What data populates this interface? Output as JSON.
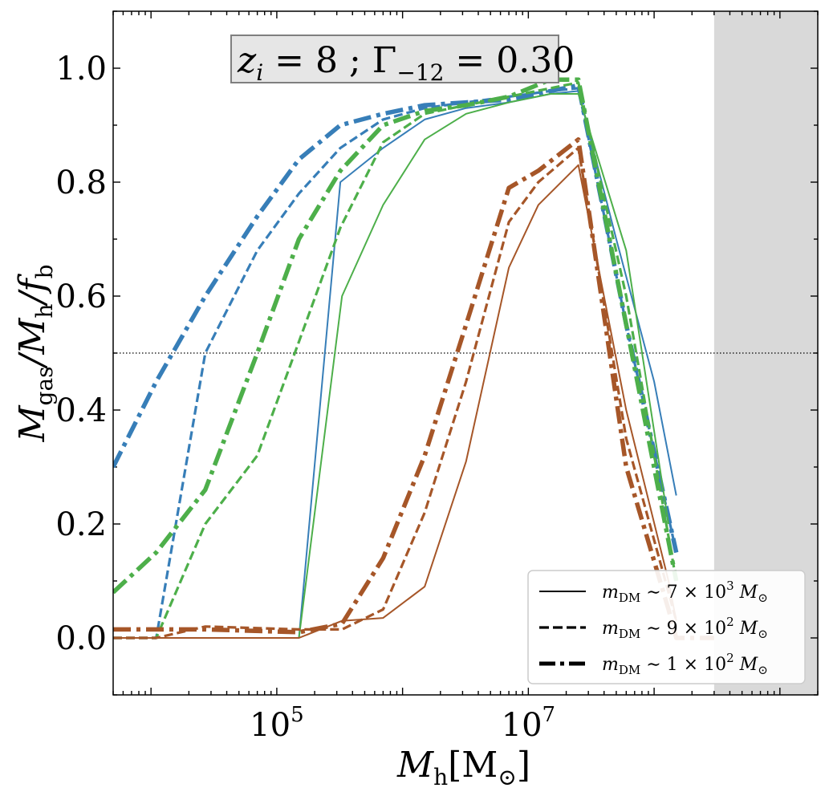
{
  "chart_data": {
    "type": "line",
    "xscale": "log",
    "xlim": [
      5000,
      2000000000
    ],
    "ylim": [
      -0.1,
      1.1
    ],
    "x_tick_labels": [
      {
        "base": "10",
        "exp": "5",
        "value": 100000
      },
      {
        "base": "10",
        "exp": "7",
        "value": 10000000
      }
    ],
    "y_tick_labels": [
      "0.0",
      "0.2",
      "0.4",
      "0.6",
      "0.8",
      "1.0"
    ],
    "y_ticks": [
      0.0,
      0.2,
      0.4,
      0.6,
      0.8,
      1.0
    ],
    "xlabel": {
      "main": "M",
      "sub": "h",
      "unit": "[M",
      "unit_sym": "⊙",
      "unit_close": "]"
    },
    "ylabel": {
      "p1": "M",
      "s1": "gas",
      "p2": "/M",
      "s2": "h",
      "p3": "/f",
      "s3": "b"
    },
    "annotation": {
      "a": "z",
      "a_sub": "i",
      "b": " = 8 ; Γ",
      "b_sub": "−12",
      "c": " = 0.30"
    },
    "hline": {
      "y": 0.5,
      "style": "dotted"
    },
    "shaded_region": {
      "x_from": 300000000,
      "x_to": 2000000000,
      "color": "#d9d9d9"
    },
    "colors": {
      "blue": "#377eb8",
      "green": "#4daf4a",
      "brown": "#a65628"
    },
    "legend": {
      "placement": "lower right",
      "entries": [
        {
          "style": "solid",
          "text_pre": "m",
          "text_sub": "DM",
          "text_mid": " ∼ 7 × 10",
          "text_sup": "3",
          "text_end": " M",
          "text_sym": "⊙"
        },
        {
          "style": "dashed",
          "text_pre": "m",
          "text_sub": "DM",
          "text_mid": " ∼ 9 × 10",
          "text_sup": "2",
          "text_end": " M",
          "text_sym": "⊙"
        },
        {
          "style": "dashdot",
          "text_pre": "m",
          "text_sub": "DM",
          "text_mid": " ∼ 1 × 10",
          "text_sup": "2",
          "text_end": " M",
          "text_sym": "⊙"
        }
      ]
    },
    "series": [
      {
        "color": "blue",
        "style": "solid",
        "x": [
          5000,
          11000,
          150000,
          320000,
          700000,
          1500000,
          3200000,
          7000000,
          15000000,
          25000000,
          50000000,
          100000000,
          150000000
        ],
        "y": [
          0.0,
          0.0,
          0.0,
          0.8,
          0.86,
          0.91,
          0.93,
          0.94,
          0.955,
          0.96,
          0.7,
          0.45,
          0.25
        ]
      },
      {
        "color": "blue",
        "style": "dashed",
        "x": [
          5000,
          11000,
          27000,
          70000,
          150000,
          320000,
          700000,
          1500000,
          3200000,
          7000000,
          15000000,
          25000000,
          60000000,
          150000000
        ],
        "y": [
          0.0,
          0.0,
          0.5,
          0.68,
          0.78,
          0.86,
          0.91,
          0.93,
          0.94,
          0.95,
          0.96,
          0.965,
          0.55,
          0.15
        ]
      },
      {
        "color": "blue",
        "style": "dashdot",
        "x": [
          5000,
          11000,
          27000,
          70000,
          150000,
          320000,
          700000,
          1500000,
          3200000,
          7000000,
          15000000,
          25000000,
          60000000,
          150000000
        ],
        "y": [
          0.3,
          0.45,
          0.6,
          0.74,
          0.84,
          0.9,
          0.92,
          0.935,
          0.94,
          0.945,
          0.96,
          0.97,
          0.55,
          0.15
        ]
      },
      {
        "color": "green",
        "style": "solid",
        "x": [
          5000,
          11000,
          150000,
          330000,
          700000,
          1500000,
          3200000,
          7000000,
          15000000,
          25000000,
          60000000,
          130000000
        ],
        "y": [
          0.0,
          0.0,
          0.0,
          0.6,
          0.76,
          0.875,
          0.92,
          0.94,
          0.955,
          0.955,
          0.68,
          0.2
        ]
      },
      {
        "color": "green",
        "style": "dashed",
        "x": [
          5000,
          11000,
          27000,
          70000,
          150000,
          320000,
          700000,
          1500000,
          3200000,
          7000000,
          15000000,
          25000000,
          60000000,
          150000000
        ],
        "y": [
          0.0,
          0.0,
          0.2,
          0.32,
          0.52,
          0.72,
          0.87,
          0.92,
          0.935,
          0.95,
          0.965,
          0.975,
          0.6,
          0.1
        ]
      },
      {
        "color": "green",
        "style": "dashdot",
        "x": [
          5000,
          11000,
          27000,
          70000,
          150000,
          320000,
          700000,
          1500000,
          3200000,
          7000000,
          15000000,
          25000000,
          60000000,
          150000000
        ],
        "y": [
          0.08,
          0.15,
          0.26,
          0.5,
          0.7,
          0.82,
          0.9,
          0.925,
          0.935,
          0.95,
          0.98,
          0.98,
          0.55,
          0.1
        ]
      },
      {
        "color": "brown",
        "style": "solid",
        "x": [
          5000,
          11000,
          150000,
          330000,
          700000,
          1500000,
          3200000,
          7000000,
          12000000,
          25000000,
          60000000,
          130000000,
          150000000
        ],
        "y": [
          0.0,
          0.0,
          0.0,
          0.03,
          0.035,
          0.09,
          0.31,
          0.65,
          0.76,
          0.83,
          0.4,
          0.1,
          0.03
        ]
      },
      {
        "color": "brown",
        "style": "dashed",
        "x": [
          5000,
          11000,
          27000,
          150000,
          330000,
          700000,
          1500000,
          3200000,
          7000000,
          12000000,
          25000000,
          60000000,
          130000000,
          150000000
        ],
        "y": [
          0.0,
          0.0,
          0.02,
          0.015,
          0.015,
          0.05,
          0.22,
          0.45,
          0.73,
          0.8,
          0.86,
          0.35,
          0.08,
          0.03
        ]
      },
      {
        "color": "brown",
        "style": "dashdot",
        "x": [
          5000,
          11000,
          27000,
          150000,
          330000,
          700000,
          1500000,
          3200000,
          7000000,
          12000000,
          25000000,
          60000000,
          130000000,
          150000000,
          300000000
        ],
        "y": [
          0.015,
          0.015,
          0.015,
          0.01,
          0.025,
          0.14,
          0.32,
          0.55,
          0.79,
          0.82,
          0.875,
          0.3,
          0.05,
          0.0,
          0.0
        ]
      }
    ]
  }
}
